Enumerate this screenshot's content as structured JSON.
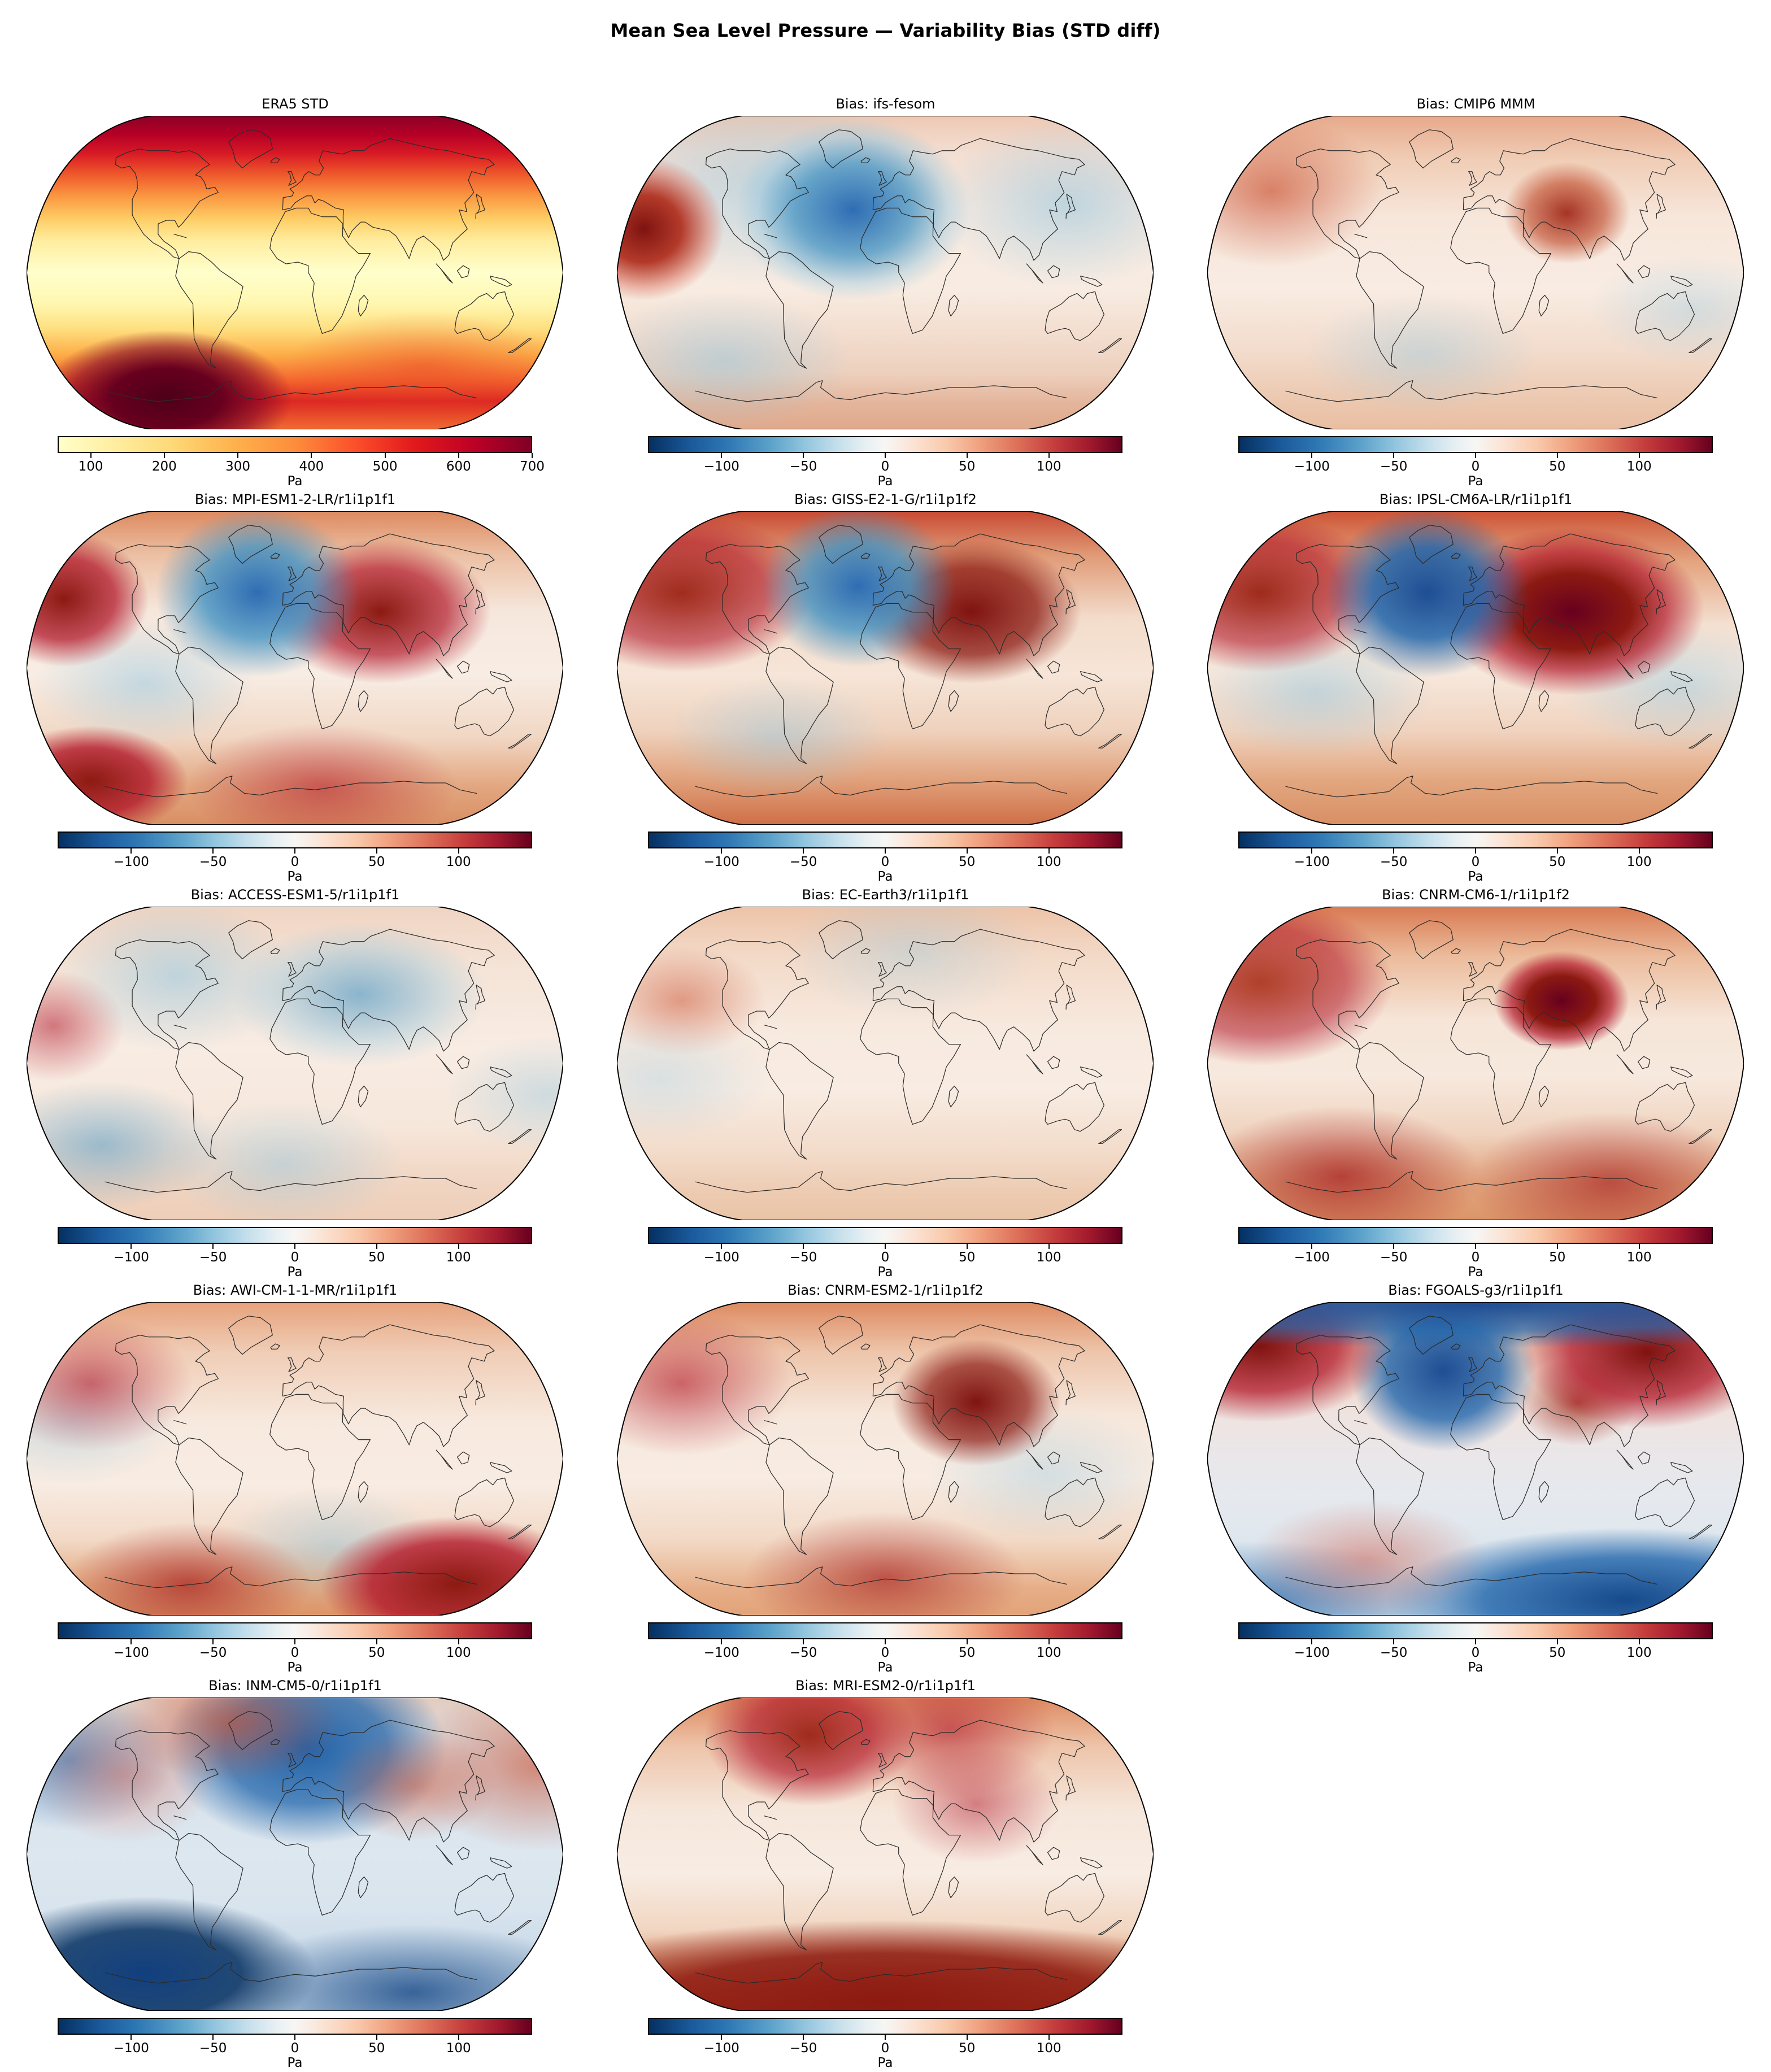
{
  "figure_title": "Mean Sea Level Pressure — Variability Bias (STD diff)",
  "panels": [
    {
      "id": "era5-std",
      "title": "ERA5 STD",
      "colormap": "YlOrRd",
      "vmin": 55,
      "vmax": 700,
      "ticks": [
        100,
        200,
        300,
        400,
        500,
        600,
        700
      ],
      "tick_labels": [
        "100",
        "200",
        "300",
        "400",
        "500",
        "600",
        "700"
      ],
      "unit": "Pa"
    },
    {
      "id": "ifs-fesom",
      "title": "Bias: ifs-fesom",
      "colormap": "RdBu_r",
      "vmin": -145,
      "vmax": 145,
      "ticks": [
        -100,
        -50,
        0,
        50,
        100
      ],
      "tick_labels": [
        "−100",
        "−50",
        "0",
        "50",
        "100"
      ],
      "unit": "Pa"
    },
    {
      "id": "cmip6-mmm",
      "title": "Bias: CMIP6 MMM",
      "colormap": "RdBu_r",
      "vmin": -145,
      "vmax": 145,
      "ticks": [
        -100,
        -50,
        0,
        50,
        100
      ],
      "tick_labels": [
        "−100",
        "−50",
        "0",
        "50",
        "100"
      ],
      "unit": "Pa"
    },
    {
      "id": "mpi-esm1-2-lr",
      "title": "Bias: MPI-ESM1-2-LR/r1i1p1f1",
      "colormap": "RdBu_r",
      "vmin": -145,
      "vmax": 145,
      "ticks": [
        -100,
        -50,
        0,
        50,
        100
      ],
      "tick_labels": [
        "−100",
        "−50",
        "0",
        "50",
        "100"
      ],
      "unit": "Pa"
    },
    {
      "id": "giss-e2-1-g",
      "title": "Bias: GISS-E2-1-G/r1i1p1f2",
      "colormap": "RdBu_r",
      "vmin": -145,
      "vmax": 145,
      "ticks": [
        -100,
        -50,
        0,
        50,
        100
      ],
      "tick_labels": [
        "−100",
        "−50",
        "0",
        "50",
        "100"
      ],
      "unit": "Pa"
    },
    {
      "id": "ipsl-cm6a-lr",
      "title": "Bias: IPSL-CM6A-LR/r1i1p1f1",
      "colormap": "RdBu_r",
      "vmin": -145,
      "vmax": 145,
      "ticks": [
        -100,
        -50,
        0,
        50,
        100
      ],
      "tick_labels": [
        "−100",
        "−50",
        "0",
        "50",
        "100"
      ],
      "unit": "Pa"
    },
    {
      "id": "access-esm1-5",
      "title": "Bias: ACCESS-ESM1-5/r1i1p1f1",
      "colormap": "RdBu_r",
      "vmin": -145,
      "vmax": 145,
      "ticks": [
        -100,
        -50,
        0,
        50,
        100
      ],
      "tick_labels": [
        "−100",
        "−50",
        "0",
        "50",
        "100"
      ],
      "unit": "Pa"
    },
    {
      "id": "ec-earth3",
      "title": "Bias: EC-Earth3/r1i1p1f1",
      "colormap": "RdBu_r",
      "vmin": -145,
      "vmax": 145,
      "ticks": [
        -100,
        -50,
        0,
        50,
        100
      ],
      "tick_labels": [
        "−100",
        "−50",
        "0",
        "50",
        "100"
      ],
      "unit": "Pa"
    },
    {
      "id": "cnrm-cm6-1",
      "title": "Bias: CNRM-CM6-1/r1i1p1f2",
      "colormap": "RdBu_r",
      "vmin": -145,
      "vmax": 145,
      "ticks": [
        -100,
        -50,
        0,
        50,
        100
      ],
      "tick_labels": [
        "−100",
        "−50",
        "0",
        "50",
        "100"
      ],
      "unit": "Pa"
    },
    {
      "id": "awi-cm-1-1-mr",
      "title": "Bias: AWI-CM-1-1-MR/r1i1p1f1",
      "colormap": "RdBu_r",
      "vmin": -145,
      "vmax": 145,
      "ticks": [
        -100,
        -50,
        0,
        50,
        100
      ],
      "tick_labels": [
        "−100",
        "−50",
        "0",
        "50",
        "100"
      ],
      "unit": "Pa"
    },
    {
      "id": "cnrm-esm2-1",
      "title": "Bias: CNRM-ESM2-1/r1i1p1f2",
      "colormap": "RdBu_r",
      "vmin": -145,
      "vmax": 145,
      "ticks": [
        -100,
        -50,
        0,
        50,
        100
      ],
      "tick_labels": [
        "−100",
        "−50",
        "0",
        "50",
        "100"
      ],
      "unit": "Pa"
    },
    {
      "id": "fgoals-g3",
      "title": "Bias: FGOALS-g3/r1i1p1f1",
      "colormap": "RdBu_r",
      "vmin": -145,
      "vmax": 145,
      "ticks": [
        -100,
        -50,
        0,
        50,
        100
      ],
      "tick_labels": [
        "−100",
        "−50",
        "0",
        "50",
        "100"
      ],
      "unit": "Pa"
    },
    {
      "id": "inm-cm5-0",
      "title": "Bias: INM-CM5-0/r1i1p1f1",
      "colormap": "RdBu_r",
      "vmin": -145,
      "vmax": 145,
      "ticks": [
        -100,
        -50,
        0,
        50,
        100
      ],
      "tick_labels": [
        "−100",
        "−50",
        "0",
        "50",
        "100"
      ],
      "unit": "Pa"
    },
    {
      "id": "mri-esm2-0",
      "title": "Bias: MRI-ESM2-0/r1i1p1f1",
      "colormap": "RdBu_r",
      "vmin": -145,
      "vmax": 145,
      "ticks": [
        -100,
        -50,
        0,
        50,
        100
      ],
      "tick_labels": [
        "−100",
        "−50",
        "0",
        "50",
        "100"
      ],
      "unit": "Pa"
    }
  ],
  "chart_data": {
    "type": "heatmap",
    "subtype": "global_map_grid",
    "projection": "robinson",
    "title": "Mean Sea Level Pressure — Variability Bias (STD diff)",
    "units": "Pa",
    "grid": {
      "rows": 5,
      "cols": 3,
      "filled_panels": 14
    },
    "reference_panel": {
      "title": "ERA5 STD",
      "colormap": "YlOrRd",
      "colorbar_ticks": [
        100,
        200,
        300,
        400,
        500,
        600,
        700
      ],
      "value_range": [
        55,
        700
      ],
      "pattern_summary": "Low STD (pale yellow ~100 Pa) in tropics; increasing orange/red toward mid-latitudes; dark red (600-700 Pa) over North Pacific, North Atlantic, Arctic and Southern Ocean; darkest maroon southwest of South America."
    },
    "bias_colorbar": {
      "colormap": "RdBu_r",
      "ticks": [
        -100,
        -50,
        0,
        50,
        100
      ],
      "value_range": [
        -145,
        145
      ]
    },
    "bias_panels": [
      {
        "title": "Bias: ifs-fesom",
        "pattern_summary": "Near-neutral pale field; strong positive (dark red) blob in Gulf of Alaska; strong negative (dark blue) blob near Iceland/North Atlantic; weak positive over Antarctica."
      },
      {
        "title": "Bias: CMIP6 MMM",
        "pattern_summary": "Weak positive almost everywhere; reddish Arctic; moderate red maximum over Tibet/central Asia; faint blue patches in southern oceans."
      },
      {
        "title": "Bias: MPI-ESM1-2-LR/r1i1p1f1",
        "pattern_summary": "Red Arctic; blue blob near Iceland; large dark-red maximum over central Asia; strong red Southern Ocean band with dark patch near Ross Sea."
      },
      {
        "title": "Bias: GISS-E2-1-G/r1i1p1f2",
        "pattern_summary": "Strongly red northern high latitudes; dark blue blob over Greenland-Iceland; dark red central-Asia maximum; red Southern Ocean band."
      },
      {
        "title": "Bias: IPSL-CM6A-LR/r1i1p1f1",
        "pattern_summary": "Dark blue North-Atlantic blob; very dark red maximum over Tibet; red Arctic and Southern Ocean; light blue subtropical ocean patches."
      },
      {
        "title": "Bias: ACCESS-ESM1-5/r1i1p1f1",
        "pattern_summary": "Mostly pale; blue blob over central Asia and North Pacific; scattered blue southern-ocean patches; small red spot west Pacific edge."
      },
      {
        "title": "Bias: EC-Earth3/r1i1p1f1",
        "pattern_summary": "Weak positive (light red) nearly everywhere; mild red Arctic rim and Southern Ocean band."
      },
      {
        "title": "Bias: CNRM-CM6-1/r1i1p1f2",
        "pattern_summary": "Red overall; intense small dark-red maximum over Tibet; strong red Southern Ocean band; red northwest North America."
      },
      {
        "title": "Bias: AWI-CM-1-1-MR/r1i1p1f1",
        "pattern_summary": "Pale center; red Arctic rim; strong dark-red Southern Ocean/Antarctic band, strongest south of Australia; small blue southern patches."
      },
      {
        "title": "Bias: CNRM-ESM2-1/r1i1p1f2",
        "pattern_summary": "Red Arctic and northwest North America; dark-red maximum over Tibet; moderate red Southern Ocean band; pale blue eastern ocean patches."
      },
      {
        "title": "Bias: FGOALS-g3/r1i1p1f1",
        "pattern_summary": "Dark red lobes over Alaska/NW Canada and NE Siberia; dark blue blob near Iceland; blue Arctic strip; strong dark-blue Southern Ocean/Antarctic band; reddish mid-latitude band above it."
      },
      {
        "title": "Bias: INM-CM5-0/r1i1p1f1",
        "pattern_summary": "Overall negative (light blue); dark blue over Nordic seas and Southern Ocean (strongest southwest of South America); red patches over Greenland, western North America, central Asia and NE Siberia."
      },
      {
        "title": "Bias: MRI-ESM2-0/r1i1p1f1",
        "pattern_summary": "Positive overall; dark red Arctic patches; very strong dark-red band along Antarctica/Southern Ocean; pale equatorial band."
      }
    ]
  }
}
